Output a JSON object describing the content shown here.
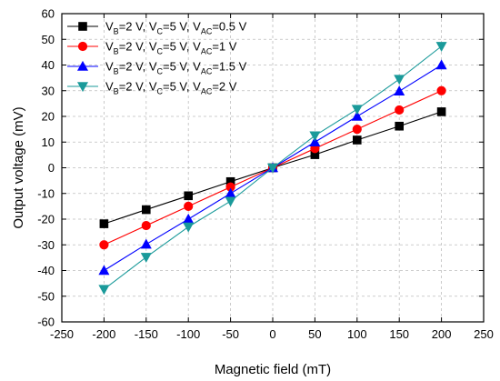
{
  "chart_data": {
    "type": "line",
    "xlabel": "Magnetic field (mT)",
    "ylabel": "Output voltage (mV)",
    "xlim": [
      -250,
      250
    ],
    "ylim": [
      -60,
      60
    ],
    "xticks": [
      -250,
      -200,
      -150,
      -100,
      -50,
      0,
      50,
      100,
      150,
      200,
      250
    ],
    "yticks": [
      -60,
      -50,
      -40,
      -30,
      -20,
      -10,
      0,
      10,
      20,
      30,
      40,
      50,
      60
    ],
    "grid": true,
    "legend_position": "top-left",
    "x": [
      -200,
      -150,
      -100,
      -50,
      0,
      50,
      100,
      150,
      200
    ],
    "series": [
      {
        "name": "VB=2 V, VC=5 V, VAC=0.5 V",
        "legend": {
          "p1": "V",
          "s1": "B",
          "p2": "=2 V, V",
          "s2": "C",
          "p3": "=5 V, V",
          "s3": "AC",
          "p4": "=0.5 V"
        },
        "color": "#000000",
        "marker": "square",
        "values": [
          -21.8,
          -16.3,
          -10.9,
          -5.4,
          0,
          5.1,
          10.8,
          16.2,
          21.8
        ]
      },
      {
        "name": "VB=2 V, VC=5 V, VAC=1 V",
        "legend": {
          "p1": "V",
          "s1": "B",
          "p2": "=2 V, V",
          "s2": "C",
          "p3": "=5 V, V",
          "s3": "AC",
          "p4": "=1 V"
        },
        "color": "#ff0000",
        "marker": "circle",
        "values": [
          -30,
          -22.5,
          -15,
          -7.5,
          0,
          7.5,
          15,
          22.5,
          30
        ]
      },
      {
        "name": "VB=2 V, VC=5 V, VAC=1.5 V",
        "legend": {
          "p1": "V",
          "s1": "B",
          "p2": "=2 V, V",
          "s2": "C",
          "p3": "=5 V, V",
          "s3": "AC",
          "p4": "=1.5 V"
        },
        "color": "#0000ff",
        "marker": "triangle-up",
        "values": [
          -40,
          -29.8,
          -20,
          -10,
          0,
          10,
          20,
          29.8,
          40
        ]
      },
      {
        "name": "VB=2 V, VC=5 V, VAC=2 V",
        "legend": {
          "p1": "V",
          "s1": "B",
          "p2": "=2 V, V",
          "s2": "C",
          "p3": "=5 V, V",
          "s3": "AC",
          "p4": "=2 V"
        },
        "color": "#1a9a9a",
        "marker": "triangle-down",
        "values": [
          -47.3,
          -34.8,
          -23,
          -13,
          0,
          12.5,
          22.8,
          34.5,
          47.3
        ]
      }
    ]
  }
}
